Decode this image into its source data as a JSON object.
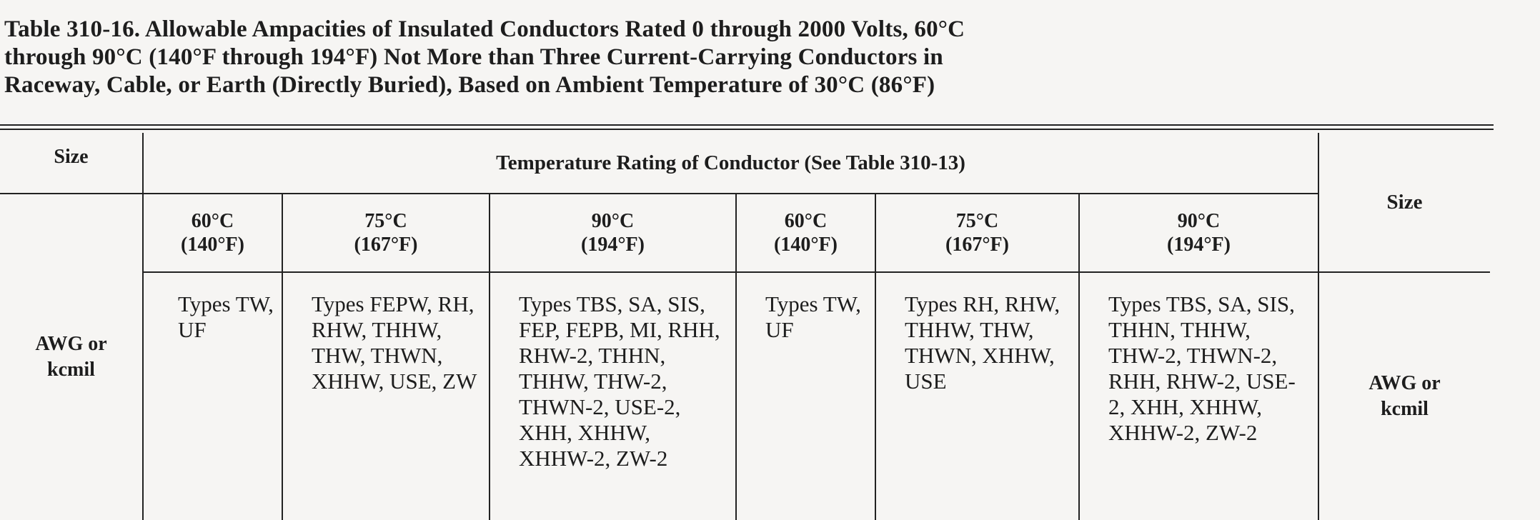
{
  "title": {
    "line1": "Table 310-16. Allowable Ampacities of Insulated Conductors Rated 0 through 2000 Volts, 60°C",
    "line2": "through 90°C (140°F through 194°F) Not More than Three Current-Carrying Conductors in",
    "line3": "Raceway, Cable, or Earth (Directly Buried), Based on Ambient Temperature of 30°C (86°F)"
  },
  "header": {
    "size_left": "Size",
    "temperature_rating": "Temperature Rating of Conductor (See Table 310-13)",
    "size_right": "Size",
    "awg_left": {
      "line1": "AWG or",
      "line2": "kcmil"
    },
    "awg_right": {
      "line1": "AWG or",
      "line2": "kcmil"
    },
    "columns": [
      {
        "celsius": "60°C",
        "fahrenheit": "(140°F)",
        "types": "Types TW, UF"
      },
      {
        "celsius": "75°C",
        "fahrenheit": "(167°F)",
        "types": "Types FEPW, RH, RHW, THHW, THW, THWN, XHHW, USE, ZW"
      },
      {
        "celsius": "90°C",
        "fahrenheit": "(194°F)",
        "types": "Types TBS, SA, SIS, FEP, FEPB, MI, RHH, RHW-2, THHN, THHW, THW-2, THWN-2, USE-2, XHH, XHHW, XHHW-2, ZW-2"
      },
      {
        "celsius": "60°C",
        "fahrenheit": "(140°F)",
        "types": "Types TW, UF"
      },
      {
        "celsius": "75°C",
        "fahrenheit": "(167°F)",
        "types": "Types RH, RHW, THHW, THW, THWN, XHHW, USE"
      },
      {
        "celsius": "90°C",
        "fahrenheit": "(194°F)",
        "types": "Types TBS, SA, SIS, THHN, THHW, THW-2, THWN-2, RHH, RHW-2, USE-2, XHH, XHHW, XHHW-2, ZW-2"
      }
    ]
  }
}
